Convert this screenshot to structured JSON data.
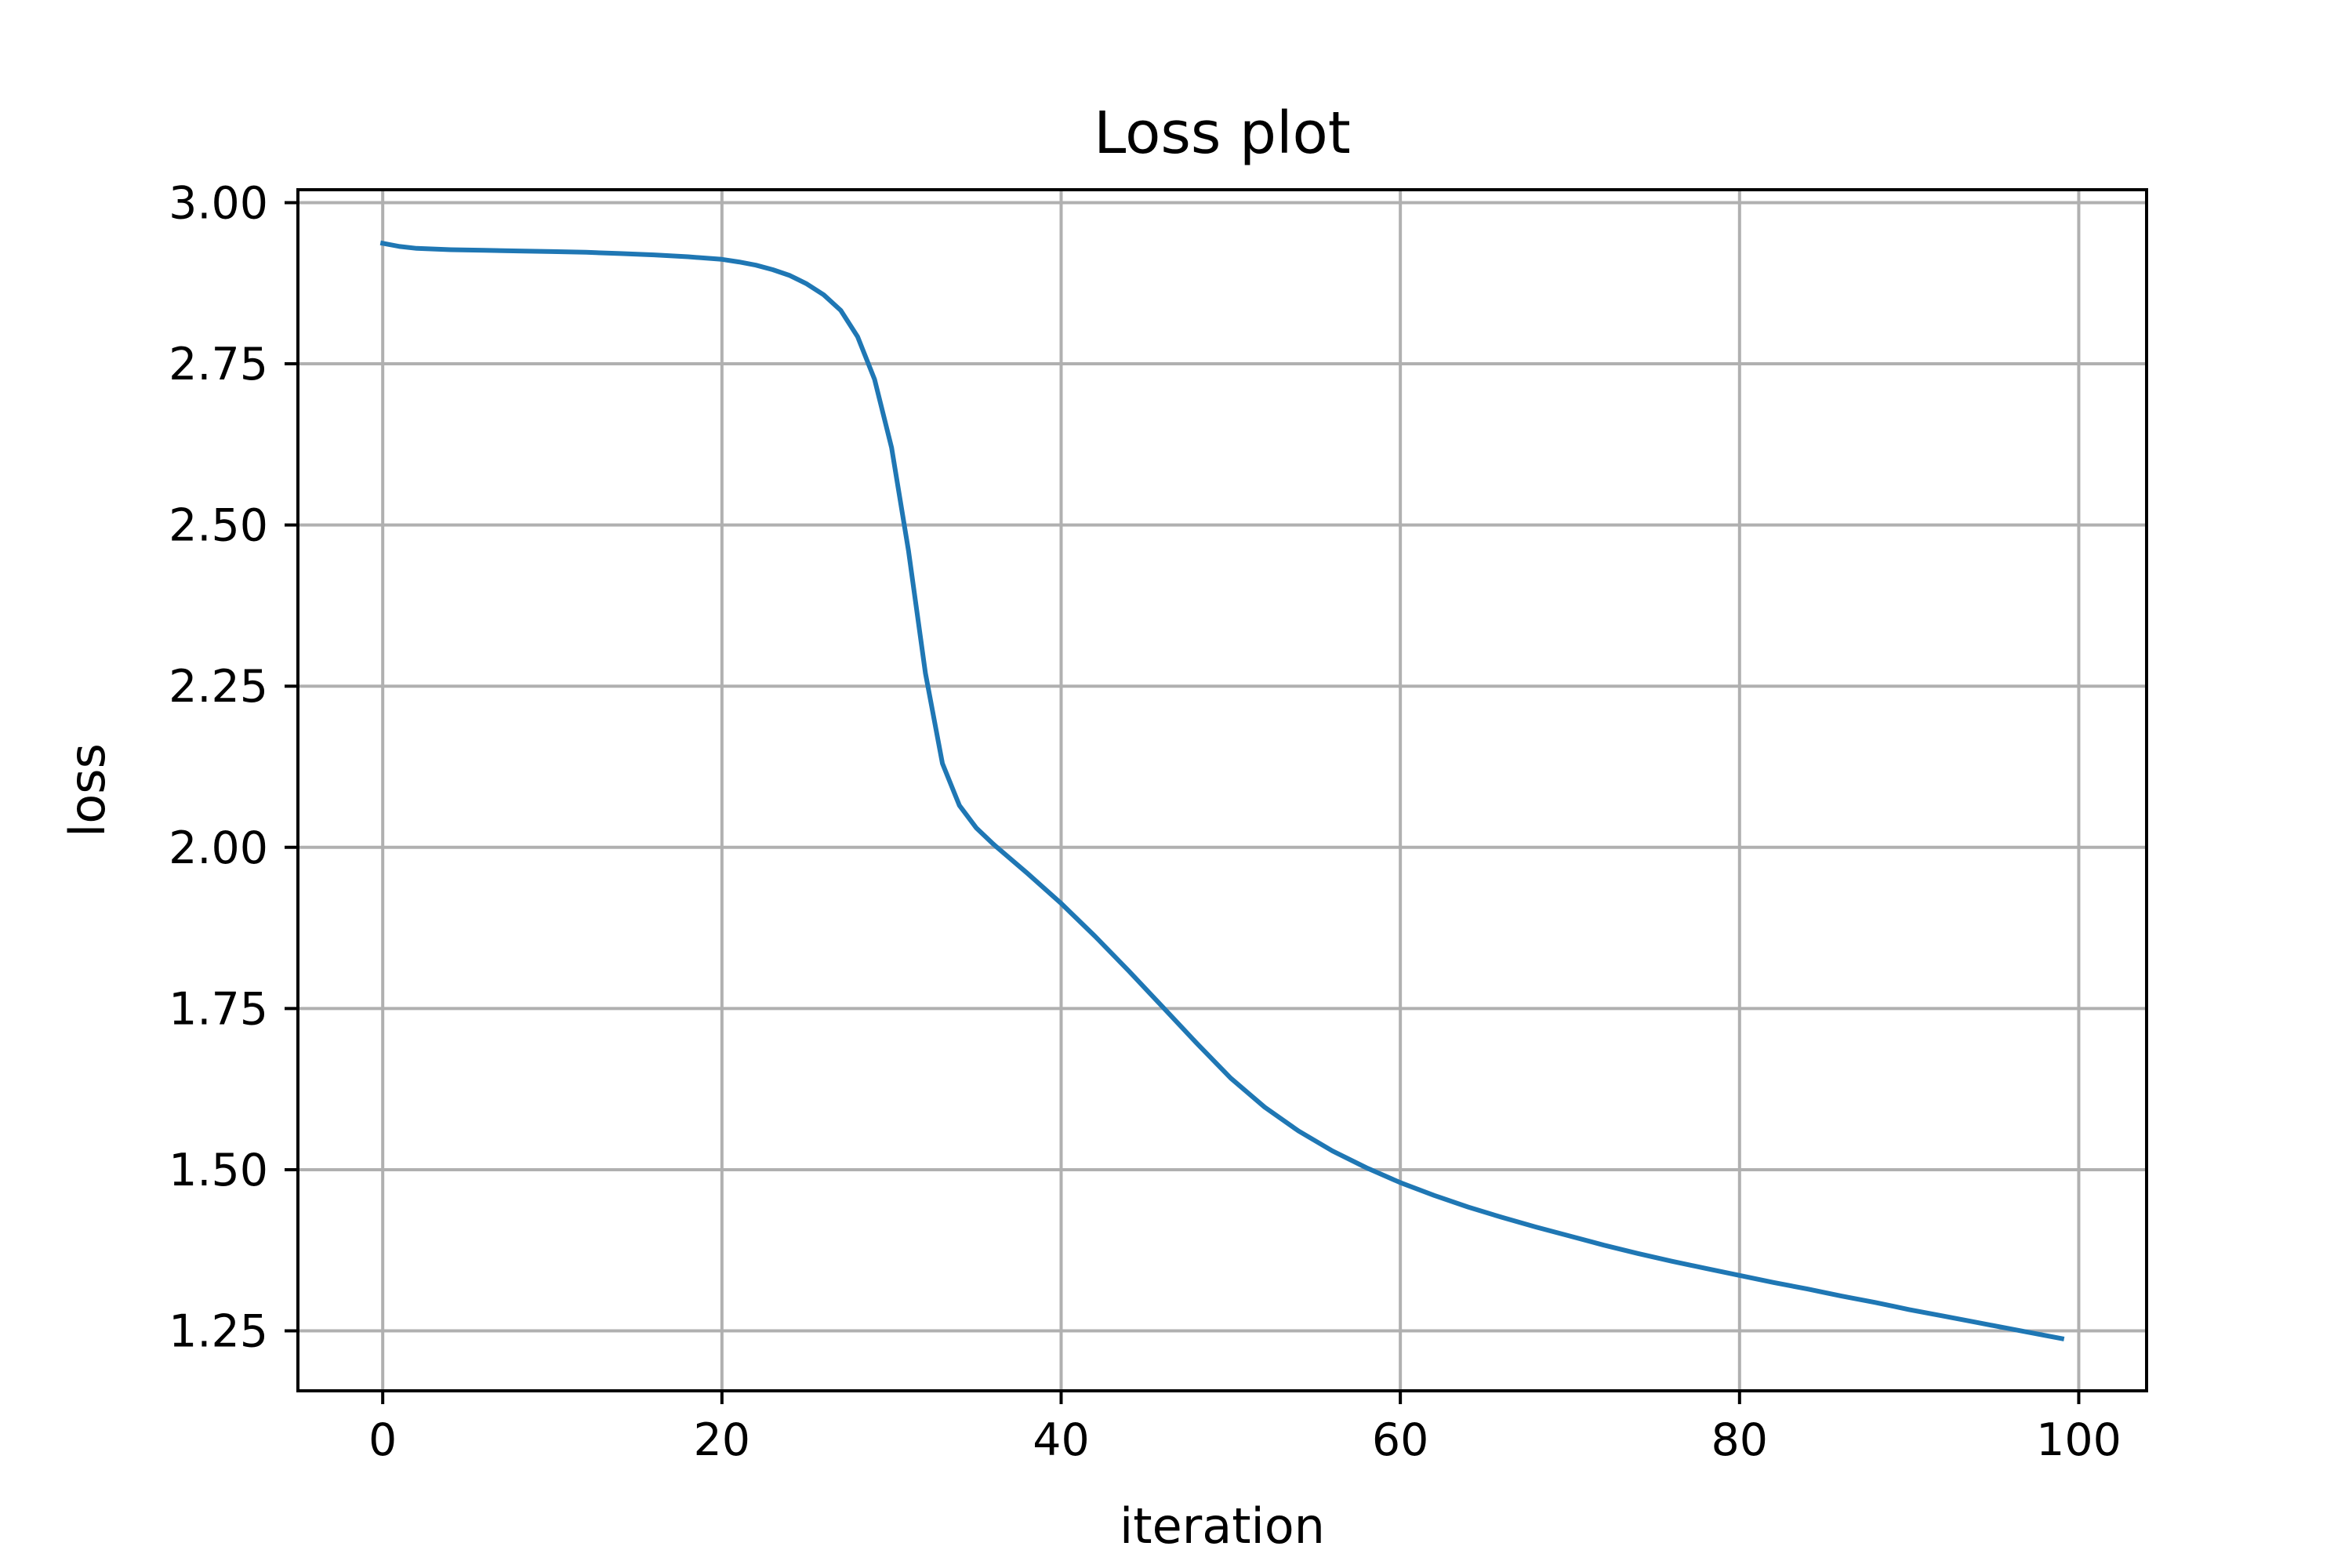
{
  "chart_data": {
    "type": "line",
    "title": "Loss plot",
    "xlabel": "iteration",
    "ylabel": "loss",
    "xlim": [
      -5,
      104
    ],
    "ylim": [
      1.157,
      3.02
    ],
    "xticks": [
      0,
      20,
      40,
      60,
      80,
      100
    ],
    "xtick_labels": [
      "0",
      "20",
      "40",
      "60",
      "80",
      "100"
    ],
    "yticks": [
      1.25,
      1.5,
      1.75,
      2.0,
      2.25,
      2.5,
      2.75,
      3.0
    ],
    "ytick_labels": [
      "1.25",
      "1.50",
      "1.75",
      "2.00",
      "2.25",
      "2.50",
      "2.75",
      "3.00"
    ],
    "grid": true,
    "series": [
      {
        "color": "#1f77b4",
        "x": [
          0,
          1,
          2,
          4,
          6,
          8,
          10,
          12,
          14,
          16,
          18,
          20,
          21,
          22,
          23,
          24,
          25,
          26,
          27,
          28,
          29,
          30,
          31,
          32,
          33,
          34,
          35,
          36,
          38,
          40,
          42,
          44,
          46,
          48,
          50,
          52,
          54,
          56,
          58,
          60,
          62,
          64,
          66,
          68,
          70,
          72,
          74,
          76,
          78,
          80,
          82,
          84,
          86,
          88,
          90,
          92,
          94,
          96,
          98,
          99
        ],
        "values": [
          2.937,
          2.932,
          2.929,
          2.927,
          2.926,
          2.925,
          2.924,
          2.923,
          2.921,
          2.919,
          2.916,
          2.912,
          2.908,
          2.903,
          2.896,
          2.887,
          2.874,
          2.857,
          2.833,
          2.792,
          2.726,
          2.62,
          2.46,
          2.27,
          2.13,
          2.065,
          2.03,
          2.005,
          1.96,
          1.913,
          1.862,
          1.808,
          1.752,
          1.696,
          1.642,
          1.597,
          1.56,
          1.529,
          1.503,
          1.48,
          1.46,
          1.442,
          1.426,
          1.411,
          1.397,
          1.383,
          1.37,
          1.358,
          1.347,
          1.336,
          1.325,
          1.315,
          1.304,
          1.294,
          1.283,
          1.273,
          1.263,
          1.253,
          1.243,
          1.238
        ]
      }
    ]
  }
}
